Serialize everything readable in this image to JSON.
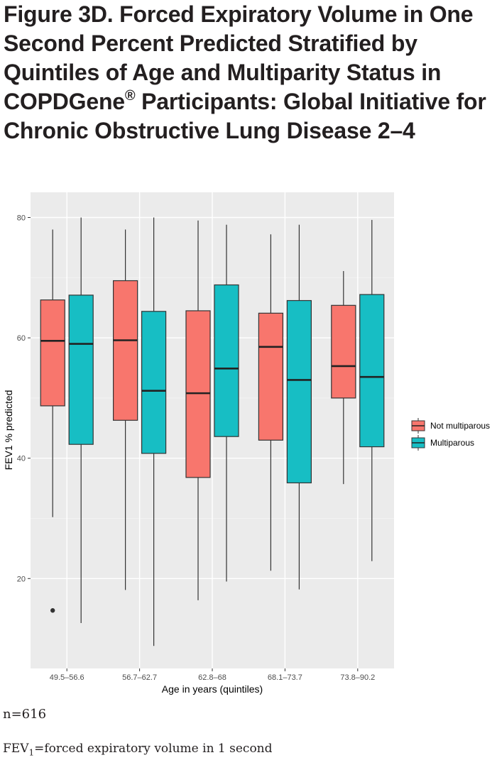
{
  "figure": {
    "title_main": "Figure 3D. Forced Expiratory Volume in One Second Percent Predicted Stratified by Quintiles of Age and Multiparity Status in COPDGene",
    "title_reg": "®",
    "title_tail": " Participants: Global Initiative for Chronic Obstructive Lung Disease 2–4"
  },
  "footnotes": {
    "n": "n=616",
    "abbr_pre": "FEV",
    "abbr_sub": "1",
    "abbr_post": "=forced expiratory volume in 1 second"
  },
  "chart_data": {
    "type": "boxplot",
    "xlabel": "Age in years (quintiles)",
    "ylabel": "FEV1 % predicted",
    "ylim": [
      7,
      83
    ],
    "yticks": [
      20,
      40,
      60,
      80
    ],
    "grid": true,
    "legend_position": "right",
    "categories": [
      "49.5–56.6",
      "56.7–62.7",
      "62.8–68",
      "68.1–73.7",
      "73.8–90.2"
    ],
    "series": [
      {
        "name": "Not multiparous",
        "color": "#f8766d",
        "boxes": [
          {
            "whisker_low": 30.2,
            "q1": 48.7,
            "median": 59.5,
            "q3": 66.3,
            "whisker_high": 78.0,
            "outliers": [
              14.7
            ]
          },
          {
            "whisker_low": 18.1,
            "q1": 46.3,
            "median": 59.6,
            "q3": 69.5,
            "whisker_high": 78.0,
            "outliers": []
          },
          {
            "whisker_low": 16.4,
            "q1": 36.8,
            "median": 50.8,
            "q3": 64.5,
            "whisker_high": 79.5,
            "outliers": []
          },
          {
            "whisker_low": 21.3,
            "q1": 43.0,
            "median": 58.5,
            "q3": 64.1,
            "whisker_high": 77.2,
            "outliers": []
          },
          {
            "whisker_low": 35.7,
            "q1": 50.0,
            "median": 55.3,
            "q3": 65.4,
            "whisker_high": 71.1,
            "outliers": []
          }
        ]
      },
      {
        "name": "Multiparous",
        "color": "#17bec4",
        "boxes": [
          {
            "whisker_low": 12.6,
            "q1": 42.3,
            "median": 59.0,
            "q3": 67.1,
            "whisker_high": 80.0,
            "outliers": []
          },
          {
            "whisker_low": 8.8,
            "q1": 40.8,
            "median": 51.2,
            "q3": 64.4,
            "whisker_high": 80.0,
            "outliers": []
          },
          {
            "whisker_low": 19.5,
            "q1": 43.6,
            "median": 54.9,
            "q3": 68.8,
            "whisker_high": 78.8,
            "outliers": []
          },
          {
            "whisker_low": 18.2,
            "q1": 35.9,
            "median": 53.0,
            "q3": 66.2,
            "whisker_high": 78.8,
            "outliers": []
          },
          {
            "whisker_low": 22.9,
            "q1": 41.9,
            "median": 53.5,
            "q3": 67.2,
            "whisker_high": 79.6,
            "outliers": []
          }
        ]
      }
    ]
  }
}
